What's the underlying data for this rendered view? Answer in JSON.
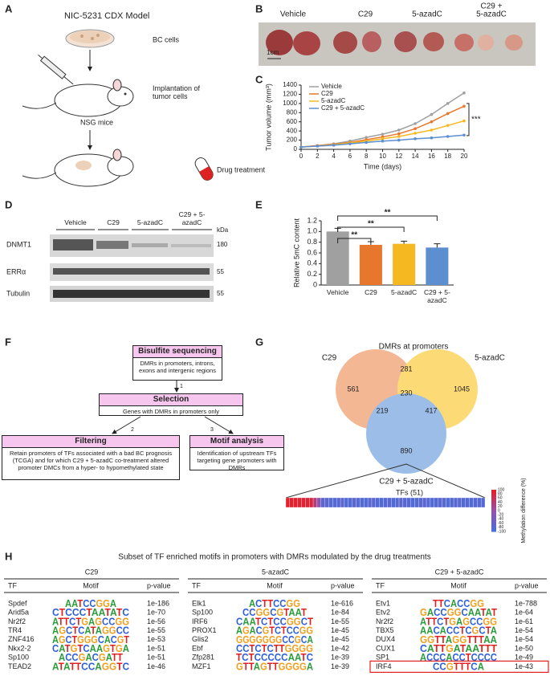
{
  "panel_a": {
    "letter": "A",
    "title": "NIC-5231 CDX Model",
    "cells": "BC cells",
    "implant": "Implantation of tumor cells",
    "mice": "NSG mice",
    "drug": "Drug treatment"
  },
  "panel_b": {
    "letter": "B",
    "groups": [
      [
        "Vehicle"
      ],
      [
        "C29"
      ],
      [
        "5-azadC"
      ],
      [
        "C29 +",
        "5-azadC"
      ]
    ],
    "scale": "1cm"
  },
  "chart_data": [
    {
      "type": "line",
      "letter": "C",
      "x": [
        0,
        2,
        4,
        6,
        8,
        10,
        12,
        14,
        16,
        18,
        20
      ],
      "xlim": [
        0,
        20
      ],
      "xticks": [
        0,
        2,
        4,
        6,
        8,
        10,
        12,
        14,
        16,
        18,
        20
      ],
      "ylim": [
        0,
        1400
      ],
      "yticks": [
        0,
        200,
        400,
        600,
        800,
        1000,
        1200,
        1400
      ],
      "xlabel": "Time (days)",
      "ylabel": "Tumor volume (mm³)",
      "annotation": "***",
      "series": [
        {
          "name": "Vehicle",
          "color": "#a0a0a0",
          "values": [
            50,
            80,
            120,
            180,
            260,
            330,
            420,
            560,
            760,
            1000,
            1230
          ]
        },
        {
          "name": "C29",
          "color": "#e8772e",
          "values": [
            50,
            80,
            110,
            150,
            210,
            270,
            340,
            450,
            600,
            780,
            940
          ]
        },
        {
          "name": "5-azadC",
          "color": "#f5b820",
          "values": [
            50,
            70,
            100,
            140,
            180,
            230,
            280,
            350,
            420,
            520,
            620
          ]
        },
        {
          "name": "C29 + 5-azadC",
          "color": "#5b8fd0",
          "values": [
            50,
            70,
            90,
            120,
            150,
            180,
            200,
            230,
            250,
            280,
            310
          ]
        }
      ]
    },
    {
      "type": "bar",
      "letter": "E",
      "categories": [
        "Vehicle",
        "C29",
        "5-azadC",
        "C29 + 5-azadC"
      ],
      "values": [
        1.0,
        0.75,
        0.77,
        0.7
      ],
      "errors": [
        0.06,
        0.06,
        0.05,
        0.07
      ],
      "colors": [
        "#a0a0a0",
        "#e8772e",
        "#f5b820",
        "#5b8fd0"
      ],
      "ylim": [
        0,
        1.2
      ],
      "yticks": [
        0,
        0.2,
        0.4,
        0.6,
        0.8,
        {
          "value": 1,
          "label": "1.0"
        },
        1.2
      ],
      "ylabel": "Relative 5mC content",
      "significance": [
        {
          "groups": [
            "Vehicle",
            "C29"
          ],
          "label": "**"
        },
        {
          "groups": [
            "Vehicle",
            "5-azadC"
          ],
          "label": "**"
        },
        {
          "groups": [
            "Vehicle",
            "C29 + 5-azadC"
          ],
          "label": "**"
        }
      ]
    }
  ],
  "panel_d": {
    "letter": "D",
    "groups": [
      "Vehicle",
      "C29",
      "5-azadC",
      "C29 + 5-azadC"
    ],
    "unit": "kDa",
    "rows": [
      {
        "name": "DNMT1",
        "kda": "180"
      },
      {
        "name": "ERRα",
        "kda": "55"
      },
      {
        "name": "Tubulin",
        "kda": "55"
      }
    ]
  },
  "panel_f": {
    "letter": "F",
    "steps": [
      {
        "title": "Bisulfite sequencing",
        "text": "DMRs in promoters, introns, exons and intergenic regions"
      },
      {
        "title": "Selection",
        "text": "Genes with DMRs in promoters only"
      },
      {
        "title": "Filtering",
        "text": "Retain promoters of TFs associated with a bad BC prognosis (TCGA) and for which C29 + 5-azadC co-treatment altered promoter DMCs from a hyper- to hypomethylated state"
      },
      {
        "title": "Motif analysis",
        "text": "Identification of upstream TFs targeting gene promoters with DMRs"
      }
    ],
    "arrows": [
      "1",
      "2",
      "3"
    ]
  },
  "panel_g": {
    "letter": "G",
    "title": "DMRs at promoters",
    "sets": [
      "C29",
      "5-azadC",
      "C29 + 5-azadC"
    ],
    "counts": {
      "c29": "561",
      "c29_aza": "281",
      "aza": "1045",
      "all": "230",
      "c29_combo": "219",
      "aza_combo": "417",
      "combo": "890"
    },
    "heatmap_title": "TFs (51)",
    "heatmap_values": [
      98,
      96,
      94,
      92,
      90,
      88,
      85,
      40,
      -20,
      -70,
      -75,
      -80,
      -85,
      -78,
      -72,
      -88,
      -82,
      -76,
      -80,
      -84,
      -86,
      -74,
      -79,
      -83,
      -87,
      -81,
      -77,
      -85,
      -80,
      -73,
      -78,
      -82,
      -86,
      -84,
      -79,
      -75,
      -81,
      -88,
      -83,
      -77,
      -80,
      -85,
      -82,
      -78,
      -76,
      -84,
      -80,
      -86,
      -79,
      -83,
      -81
    ],
    "clim": [
      -100,
      100
    ],
    "cticks": [
      100,
      80,
      60,
      40,
      20,
      0,
      -20,
      -40,
      -60,
      -80,
      -100
    ],
    "clabel": "Methylation difference (%)"
  },
  "panel_h": {
    "letter": "H",
    "title": "Subset of TF enriched motifs in promoters with DMRs modulated by the drug treatments",
    "headers": [
      "TF",
      "Motif",
      "p-value"
    ],
    "tables": [
      {
        "name": "C29",
        "rows": [
          [
            "Spdef",
            "AATCCGGA",
            "1e-186"
          ],
          [
            "Arid5a",
            "CTCCCTAATATC",
            "1e-70"
          ],
          [
            "Nr2f2",
            "ATTCTGAGCCGG",
            "1e-56"
          ],
          [
            "TR4",
            "AGCTCATAGGCC",
            "1e-55"
          ],
          [
            "ZNF416",
            "AGCTGGGCACGT",
            "1e-53"
          ],
          [
            "Nkx2-2",
            "CATGTCAAGTGA",
            "1e-51"
          ],
          [
            "Sp100",
            "ACCGACGATT",
            "1e-51"
          ],
          [
            "TEAD2",
            "ATATTCCAGGTC",
            "1e-46"
          ]
        ]
      },
      {
        "name": "5-azadC",
        "rows": [
          [
            "Elk1",
            "ACTTCCGG",
            "1e-616"
          ],
          [
            "Sp100",
            "CCGGCGTAAT",
            "1e-84"
          ],
          [
            "IRF6",
            "CAATCTCCGGCT",
            "1e-55"
          ],
          [
            "PROX1",
            "AGACGTCTCCGG",
            "1e-45"
          ],
          [
            "Glis2",
            "GGGGGGGCCGCA",
            "1e-45"
          ],
          [
            "Ebf",
            "CCTCTCTTGGGG",
            "1e-42"
          ],
          [
            "Zfp281",
            "TCTCCCCCAATC",
            "1e-39"
          ],
          [
            "MZF1",
            "GTTAGTTGGGGA",
            "1e-39"
          ]
        ]
      },
      {
        "name": "C29 + 5-azadC",
        "highlight_row": 7,
        "rows": [
          [
            "Etv1",
            "TTCACCGG",
            "1e-788"
          ],
          [
            "Etv2",
            "GACCGGCAATAT",
            "1e-64"
          ],
          [
            "Nr2f2",
            "ATTCTGAGCCGG",
            "1e-61"
          ],
          [
            "TBX5",
            "AACACCTCGCTA",
            "1e-54"
          ],
          [
            "DUX4",
            "GGTTAGGTTTAA",
            "1e-54"
          ],
          [
            "CUX1",
            "CATTGATAATTT",
            "1e-50"
          ],
          [
            "SP1",
            "ACCCACCTCCCC",
            "1e-49"
          ],
          [
            "IRF4",
            "CCGTTTCA",
            "1e-43"
          ]
        ]
      }
    ]
  }
}
